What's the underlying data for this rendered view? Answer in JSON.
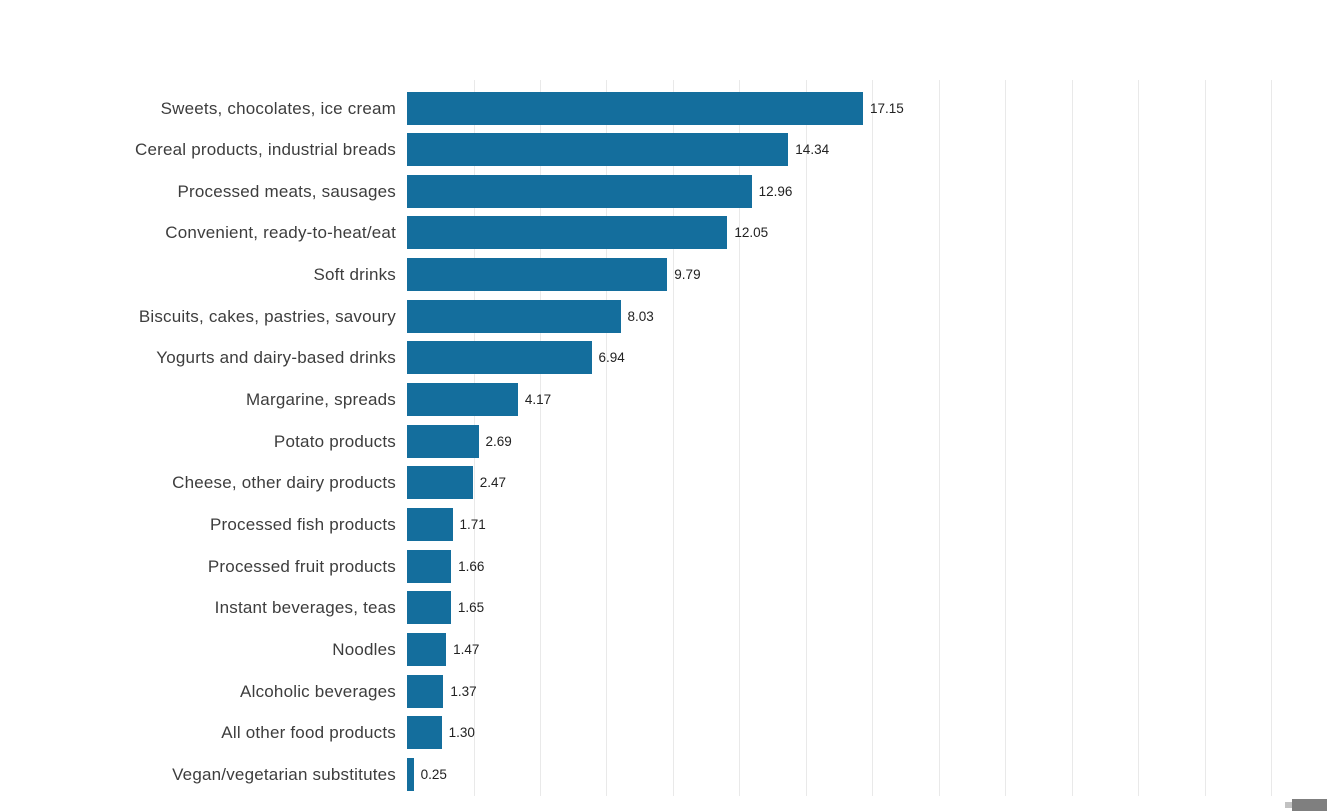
{
  "chart_data": {
    "type": "bar",
    "orientation": "horizontal",
    "title": "",
    "xlabel": "",
    "ylabel": "",
    "legend": "none",
    "grid": true,
    "grid_interval": 2.5,
    "xlim": [
      0,
      34.6
    ],
    "bar_color": "#146e9d",
    "gridline_color": "#e9e9e9",
    "categories": [
      "Sweets, chocolates, ice cream",
      "Cereal products, industrial breads",
      "Processed meats, sausages",
      "Convenient, ready-to-heat/eat",
      "Soft drinks",
      "Biscuits, cakes, pastries, savoury",
      "Yogurts and dairy-based drinks",
      "Margarine, spreads",
      "Potato products",
      "Cheese, other dairy products",
      "Processed fish products",
      "Processed fruit products",
      "Instant beverages, teas",
      "Noodles",
      "Alcoholic beverages",
      "All other food products",
      "Vegan/vegetarian substitutes"
    ],
    "values": [
      17.15,
      14.34,
      12.96,
      12.05,
      9.79,
      8.03,
      6.94,
      4.17,
      2.69,
      2.47,
      1.71,
      1.66,
      1.65,
      1.47,
      1.37,
      1.3,
      0.25
    ],
    "value_labels": [
      "17.15",
      "14.34",
      "12.96",
      "12.05",
      "9.79",
      "8.03",
      "6.94",
      "4.17",
      "2.69",
      "2.47",
      "1.71",
      "1.66",
      "1.65",
      "1.47",
      "1.37",
      "1.30",
      "0.25"
    ]
  },
  "scrollbar": {
    "thumb_color": "#7f7f7f"
  }
}
